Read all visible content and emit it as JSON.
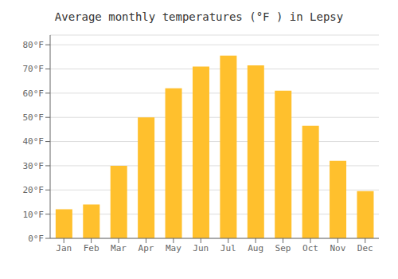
{
  "chart_data": {
    "type": "bar",
    "title": "Average monthly temperatures (°F ) in Lepsy",
    "categories": [
      "Jan",
      "Feb",
      "Mar",
      "Apr",
      "May",
      "Jun",
      "Jul",
      "Aug",
      "Sep",
      "Oct",
      "Nov",
      "Dec"
    ],
    "values": [
      12,
      14,
      30,
      50,
      62,
      71,
      75.5,
      71.5,
      61,
      46.5,
      32,
      19.5
    ],
    "color": "#FFC02D",
    "ylim": [
      0,
      84
    ],
    "yticks": [
      {
        "value": 0,
        "label": "0°F"
      },
      {
        "value": 10,
        "label": "10°F"
      },
      {
        "value": 20,
        "label": "20°F"
      },
      {
        "value": 30,
        "label": "30°F"
      },
      {
        "value": 40,
        "label": "40°F"
      },
      {
        "value": 50,
        "label": "50°F"
      },
      {
        "value": 60,
        "label": "60°F"
      },
      {
        "value": 70,
        "label": "70°F"
      },
      {
        "value": 80,
        "label": "80°F"
      }
    ],
    "grid": true
  }
}
